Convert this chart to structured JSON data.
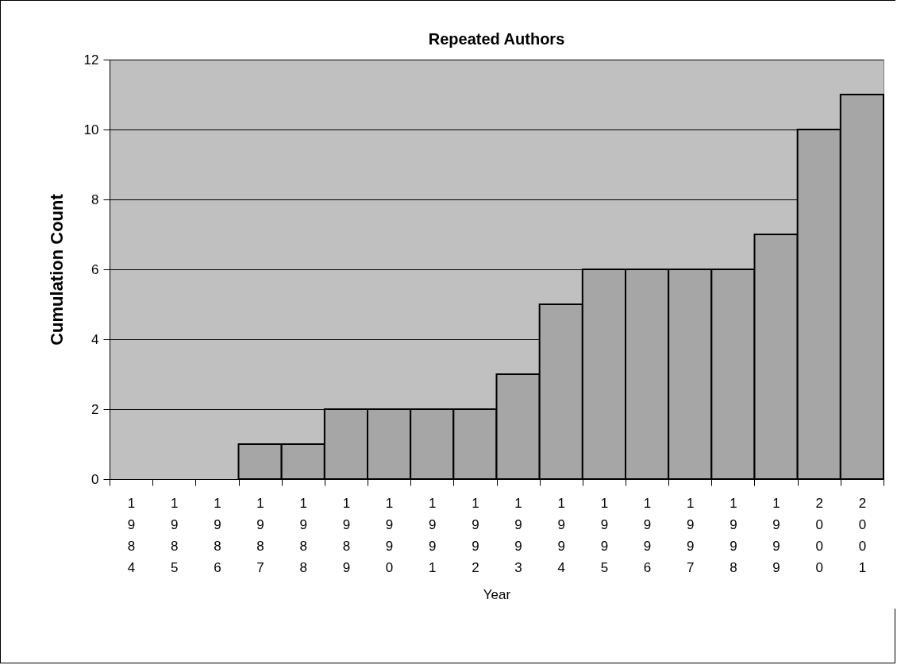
{
  "chart_data": {
    "type": "bar",
    "title": "Repeated Authors",
    "xlabel": "Year",
    "ylabel": "Cumulation Count",
    "categories": [
      "1984",
      "1985",
      "1986",
      "1987",
      "1988",
      "1989",
      "1990",
      "1991",
      "1992",
      "1993",
      "1994",
      "1995",
      "1996",
      "1997",
      "1998",
      "1999",
      "2000",
      "2001"
    ],
    "values": [
      0,
      0,
      0,
      1,
      1,
      2,
      2,
      2,
      2,
      3,
      5,
      6,
      6,
      6,
      6,
      7,
      10,
      11
    ],
    "color": "#a6a6a6",
    "ylim": [
      0,
      12
    ],
    "yticks": [
      0,
      2,
      4,
      6,
      8,
      10,
      12
    ],
    "grid": "y"
  }
}
